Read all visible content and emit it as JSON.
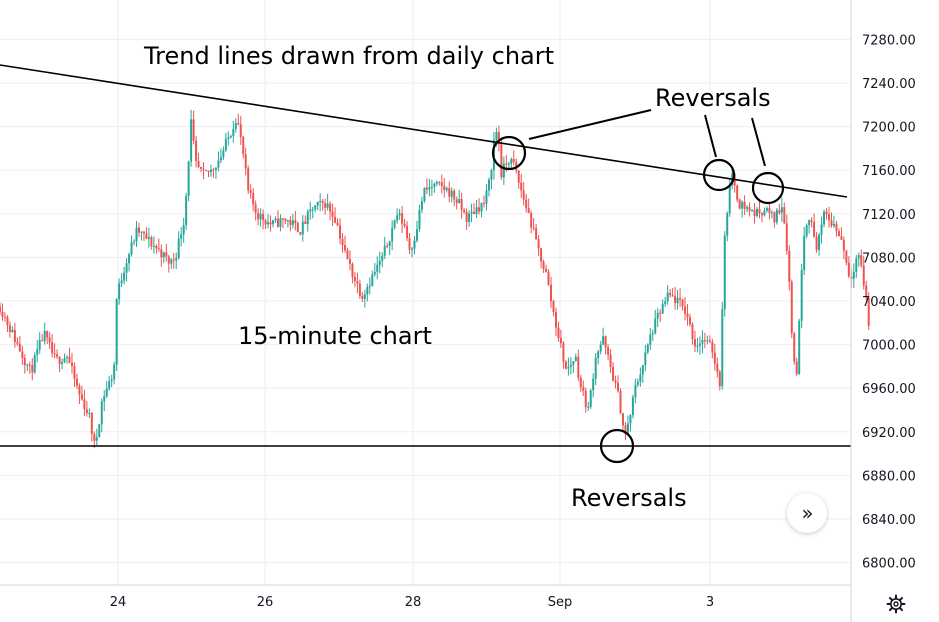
{
  "chart_data": {
    "type": "candlestick",
    "x_tick_labels": [
      "24",
      "26",
      "28",
      "Sep",
      "3"
    ],
    "y_tick_labels": [
      "7280.00",
      "7240.00",
      "7200.00",
      "7160.00",
      "7120.00",
      "7080.00",
      "7040.00",
      "7000.00",
      "6960.00",
      "6920.00",
      "6880.00",
      "6840.00",
      "6800.00"
    ],
    "ylim": [
      6790,
      7320
    ],
    "grid": true,
    "colors": {
      "up": "#26a69a",
      "down": "#ef5350",
      "grid": "#ebeef3",
      "annotation": "#000000",
      "axis_text": "#131722"
    },
    "price_path": [
      [
        0,
        7035
      ],
      [
        1.2,
        7000
      ],
      [
        2.1,
        6975
      ],
      [
        3.0,
        7010
      ],
      [
        3.8,
        6985
      ],
      [
        4.6,
        6990
      ],
      [
        5.4,
        6955
      ],
      [
        6.1,
        6935
      ],
      [
        6.5,
        6905
      ],
      [
        7.0,
        6950
      ],
      [
        7.8,
        6975
      ],
      [
        8.0,
        7045
      ],
      [
        8.6,
        7075
      ],
      [
        9.4,
        7105
      ],
      [
        10.2,
        7095
      ],
      [
        11.0,
        7085
      ],
      [
        11.6,
        7075
      ],
      [
        12.0,
        7080
      ],
      [
        12.6,
        7115
      ],
      [
        12.9,
        7160
      ],
      [
        13.0,
        7215
      ],
      [
        13.4,
        7165
      ],
      [
        13.9,
        7155
      ],
      [
        14.5,
        7160
      ],
      [
        15.2,
        7175
      ],
      [
        15.8,
        7195
      ],
      [
        16.2,
        7210
      ],
      [
        16.6,
        7180
      ],
      [
        17.0,
        7140
      ],
      [
        17.6,
        7120
      ],
      [
        18.6,
        7110
      ],
      [
        19.6,
        7115
      ],
      [
        20.6,
        7105
      ],
      [
        21.4,
        7125
      ],
      [
        22.3,
        7130
      ],
      [
        23.0,
        7115
      ],
      [
        23.6,
        7085
      ],
      [
        24.3,
        7060
      ],
      [
        24.8,
        7045
      ],
      [
        25.4,
        7060
      ],
      [
        26.2,
        7080
      ],
      [
        26.7,
        7100
      ],
      [
        27.2,
        7120
      ],
      [
        27.7,
        7110
      ],
      [
        28.1,
        7085
      ],
      [
        28.5,
        7105
      ],
      [
        29.0,
        7140
      ],
      [
        29.6,
        7145
      ],
      [
        30.2,
        7145
      ],
      [
        30.8,
        7140
      ],
      [
        31.4,
        7130
      ],
      [
        32.0,
        7115
      ],
      [
        32.6,
        7125
      ],
      [
        33.2,
        7130
      ],
      [
        33.6,
        7155
      ],
      [
        33.8,
        7185
      ],
      [
        34.1,
        7200
      ],
      [
        34.3,
        7155
      ],
      [
        34.8,
        7170
      ],
      [
        35.2,
        7165
      ],
      [
        35.6,
        7145
      ],
      [
        36.2,
        7120
      ],
      [
        36.8,
        7090
      ],
      [
        37.4,
        7065
      ],
      [
        37.9,
        7030
      ],
      [
        38.3,
        7005
      ],
      [
        38.8,
        6975
      ],
      [
        39.4,
        6990
      ],
      [
        39.8,
        6960
      ],
      [
        40.3,
        6940
      ],
      [
        40.8,
        6990
      ],
      [
        41.3,
        7005
      ],
      [
        41.9,
        6975
      ],
      [
        42.4,
        6950
      ],
      [
        42.8,
        6915
      ],
      [
        43.1,
        6930
      ],
      [
        43.5,
        6960
      ],
      [
        44.1,
        6985
      ],
      [
        44.6,
        7010
      ],
      [
        45.2,
        7030
      ],
      [
        45.8,
        7045
      ],
      [
        46.4,
        7040
      ],
      [
        47.0,
        7030
      ],
      [
        47.6,
        7000
      ],
      [
        48.2,
        7005
      ],
      [
        48.8,
        6995
      ],
      [
        49.3,
        6965
      ],
      [
        49.6,
        7090
      ],
      [
        49.9,
        7140
      ],
      [
        50.2,
        7155
      ],
      [
        50.6,
        7130
      ],
      [
        51.2,
        7125
      ],
      [
        51.8,
        7120
      ],
      [
        52.4,
        7125
      ],
      [
        53.0,
        7115
      ],
      [
        53.6,
        7130
      ],
      [
        54.0,
        7075
      ],
      [
        54.3,
        6990
      ],
      [
        54.6,
        6975
      ],
      [
        55.0,
        7100
      ],
      [
        55.4,
        7120
      ],
      [
        55.9,
        7090
      ],
      [
        56.5,
        7120
      ],
      [
        57.1,
        7110
      ],
      [
        57.7,
        7095
      ],
      [
        58.2,
        7060
      ],
      [
        58.8,
        7085
      ],
      [
        59.3,
        7045
      ],
      [
        59.6,
        7005
      ]
    ]
  },
  "annotations": {
    "title": "Trend lines drawn from daily chart",
    "chart_label": "15-minute chart",
    "reversals_top": "Reversals",
    "reversals_bottom": "Reversals"
  },
  "controls": {
    "scroll_icon": "double-chevron-right-icon",
    "settings_icon": "gear-icon"
  }
}
